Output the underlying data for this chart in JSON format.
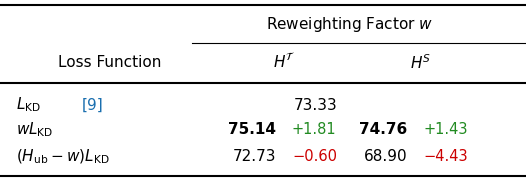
{
  "title": "Reweighting Factor $w$",
  "col_header_1": "$H^{\\mathcal{T}}$",
  "col_header_2": "$H^{S}$",
  "row_label_col": "Loss Function",
  "background_color": "#ffffff",
  "fig_width": 5.26,
  "fig_height": 1.78,
  "dpi": 100,
  "fs_title": 11.0,
  "fs_header": 11.0,
  "fs_data": 11.0,
  "fs_delta": 10.5,
  "green_color": "#228B22",
  "red_color": "#cc0000",
  "blue_color": "#1a6faf",
  "lw_thick": 1.5,
  "lw_thin": 0.8
}
